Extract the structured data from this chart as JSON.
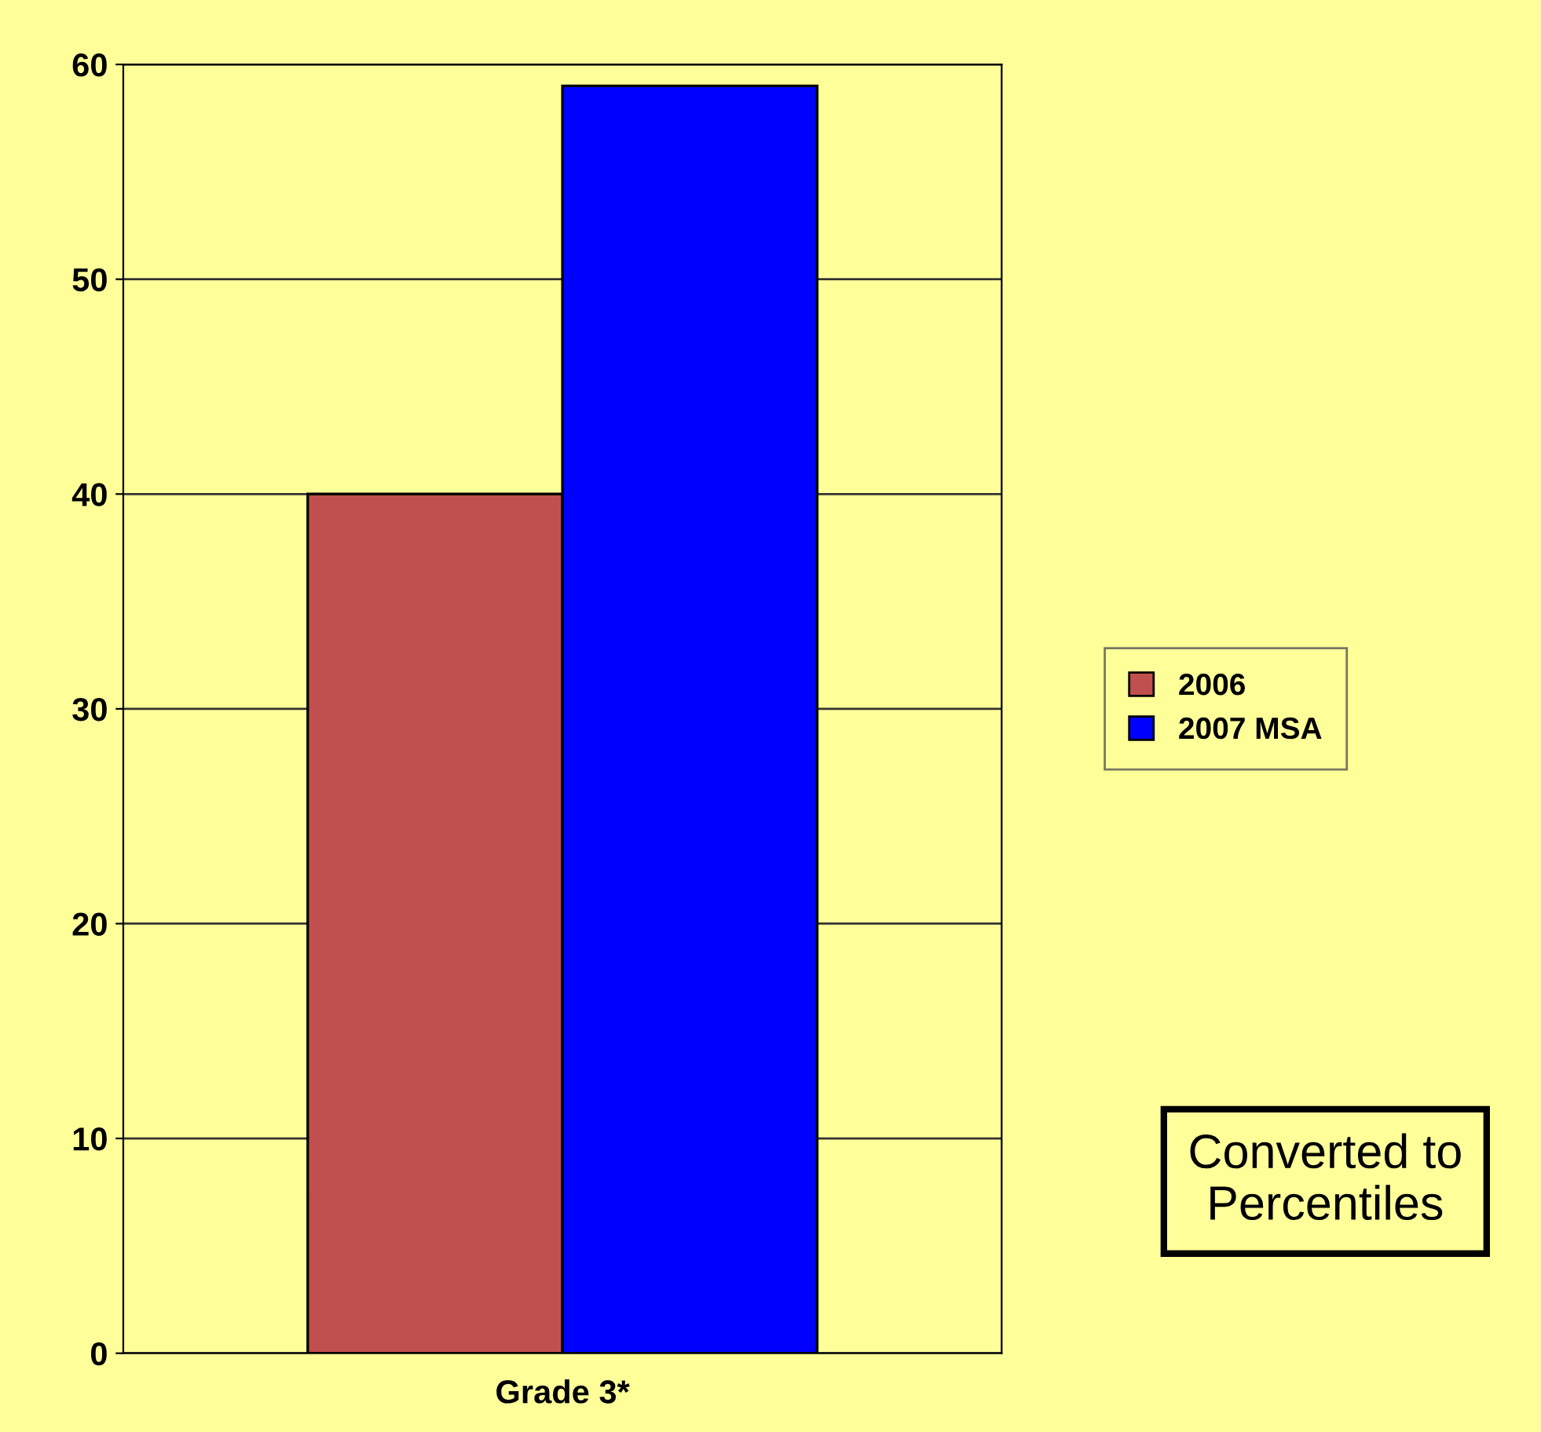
{
  "chart_data": {
    "type": "bar",
    "categories": [
      "Grade 3*"
    ],
    "series": [
      {
        "name": "2006",
        "color": "#c0504d",
        "values": [
          40
        ]
      },
      {
        "name": "2007 MSA",
        "color": "#0000ff",
        "values": [
          59
        ]
      }
    ],
    "ylim": [
      0,
      60
    ],
    "yticks": [
      0,
      10,
      20,
      30,
      40,
      50,
      60
    ],
    "grid": "y",
    "legend": "right",
    "annotations": [
      "Converted to Percentiles"
    ]
  }
}
